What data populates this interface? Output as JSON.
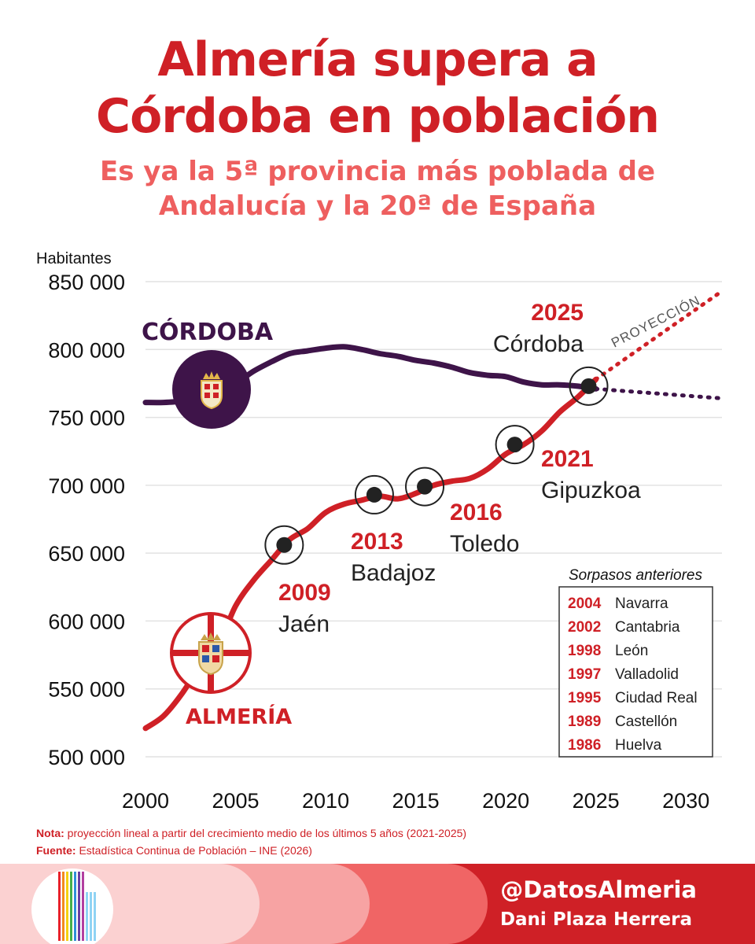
{
  "header": {
    "title_line1": "Almería supera a",
    "title_line2": "Córdoba en población",
    "subtitle_line1": "Es ya la 5ª provincia más poblada de",
    "subtitle_line2": "Andalucía y la 20ª de España"
  },
  "colors": {
    "almeria": "#cf2026",
    "cordoba": "#3e1449",
    "grid": "#e2e2e2",
    "title": "#cf2026",
    "subtitle": "#ee5f5f"
  },
  "chart_data": {
    "type": "line",
    "ylabel": "Habitantes",
    "xlim": [
      2000,
      2032
    ],
    "ylim": [
      500000,
      850000
    ],
    "x_ticks": [
      2000,
      2005,
      2010,
      2015,
      2020,
      2025,
      2030
    ],
    "y_ticks": [
      500000,
      550000,
      600000,
      650000,
      700000,
      750000,
      800000,
      850000
    ],
    "y_tick_labels": [
      "500 000",
      "550 000",
      "600 000",
      "650 000",
      "700 000",
      "750 000",
      "800 000",
      "850 000"
    ],
    "grid": true,
    "series": [
      {
        "name": "ALMERÍA",
        "color": "#cf2026",
        "x": [
          2000,
          2001,
          2002,
          2003,
          2004,
          2005,
          2006,
          2007,
          2008,
          2009,
          2010,
          2011,
          2012,
          2013,
          2014,
          2015,
          2016,
          2017,
          2018,
          2019,
          2020,
          2021,
          2022,
          2023,
          2024,
          2025
        ],
        "values": [
          521000,
          530000,
          546000,
          566000,
          581000,
          611000,
          630000,
          645000,
          660000,
          668000,
          680000,
          686000,
          689000,
          692000,
          690000,
          694000,
          700000,
          703000,
          705000,
          712000,
          723000,
          730000,
          740000,
          754000,
          765000,
          778000
        ]
      },
      {
        "name": "CÓRDOBA",
        "color": "#3e1449",
        "x": [
          2000,
          2001,
          2002,
          2003,
          2004,
          2005,
          2006,
          2007,
          2008,
          2009,
          2010,
          2011,
          2012,
          2013,
          2014,
          2015,
          2016,
          2017,
          2018,
          2019,
          2020,
          2021,
          2022,
          2023,
          2024,
          2025
        ],
        "values": [
          761000,
          761000,
          762000,
          765000,
          769000,
          775000,
          784000,
          791000,
          797000,
          799000,
          801000,
          802000,
          800000,
          797000,
          795000,
          792000,
          790000,
          787000,
          783000,
          781000,
          780000,
          776000,
          774000,
          774000,
          773000,
          771000
        ]
      }
    ],
    "projection": {
      "label": "PROYECCIÓN",
      "x": [
        2025,
        2032
      ],
      "almeria": [
        778000,
        843000
      ],
      "cordoba": [
        771000,
        764000
      ]
    },
    "milestones": [
      {
        "year": "2009",
        "place": "Jaén",
        "x": 2007.7,
        "y": 656000
      },
      {
        "year": "2013",
        "place": "Badajoz",
        "x": 2012.7,
        "y": 693000
      },
      {
        "year": "2016",
        "place": "Toledo",
        "x": 2015.5,
        "y": 699000
      },
      {
        "year": "2021",
        "place": "Gipuzkoa",
        "x": 2020.5,
        "y": 730000
      },
      {
        "year": "2025",
        "place": "Córdoba",
        "x": 2024.6,
        "y": 773000
      }
    ],
    "previous_overtakes": {
      "title": "Sorpasos anteriores",
      "items": [
        {
          "year": "2004",
          "place": "Navarra"
        },
        {
          "year": "2002",
          "place": "Cantabria"
        },
        {
          "year": "1998",
          "place": "León"
        },
        {
          "year": "1997",
          "place": "Valladolid"
        },
        {
          "year": "1995",
          "place": "Ciudad Real"
        },
        {
          "year": "1989",
          "place": "Castellón"
        },
        {
          "year": "1986",
          "place": "Huelva"
        }
      ]
    }
  },
  "notes": {
    "nota_label": "Nota:",
    "nota_text": " proyección lineal a partir del crecimiento medio de los últimos 5 años (2021-2025)",
    "fuente_label": "Fuente:",
    "fuente_text": " Estadística Continua de Población – INE (2026)"
  },
  "footer": {
    "handle": "@DatosAlmeria",
    "author": "Dani Plaza Herrera"
  }
}
